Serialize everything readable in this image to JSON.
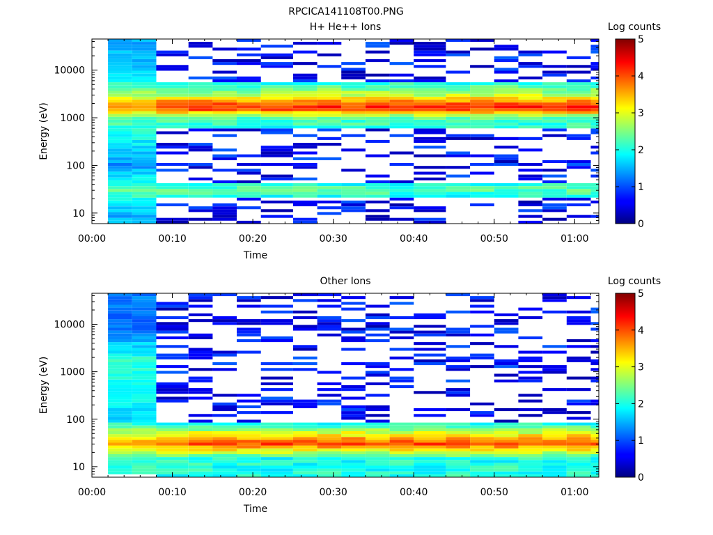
{
  "figure_title": "RPCICA141108T00.PNG",
  "chart_data": [
    {
      "type": "heatmap",
      "title": "H+ He++ Ions",
      "xlabel": "Time",
      "ylabel": "Energy (eV)",
      "colorbar_label": "Log counts",
      "y_scale": "log",
      "ylim": [
        6,
        45000
      ],
      "xlim": [
        "00:00",
        "01:03"
      ],
      "x_ticks": [
        "00:00",
        "00:10",
        "00:20",
        "00:30",
        "00:40",
        "00:50",
        "01:00"
      ],
      "y_ticks": [
        "10",
        "100",
        "1000",
        "10000"
      ],
      "colorbar_ticks": [
        "0",
        "1",
        "2",
        "3",
        "4",
        "5"
      ],
      "colorbar_range": [
        0,
        5
      ],
      "time_bins_start": [
        "00:02",
        "00:05",
        "00:08",
        "00:12",
        "00:15",
        "00:18",
        "00:21",
        "00:25",
        "00:28",
        "00:31",
        "00:34",
        "00:37",
        "00:40",
        "00:44",
        "00:47",
        "00:50",
        "00:53",
        "00:56",
        "00:59",
        "01:02"
      ],
      "spectra_profile": [
        {
          "energy_eV": 10,
          "log_counts": 1.2
        },
        {
          "energy_eV": 30,
          "log_counts": 2.3
        },
        {
          "energy_eV": 100,
          "log_counts": 1.0
        },
        {
          "energy_eV": 1000,
          "log_counts": 2.3
        },
        {
          "energy_eV": 1500,
          "log_counts": 4.0
        },
        {
          "energy_eV": 1800,
          "log_counts": 4.2
        },
        {
          "energy_eV": 3000,
          "log_counts": 2.8
        },
        {
          "energy_eV": 10000,
          "log_counts": 1.2
        }
      ]
    },
    {
      "type": "heatmap",
      "title": "Other Ions",
      "xlabel": "Time",
      "ylabel": "Energy (eV)",
      "colorbar_label": "Log counts",
      "y_scale": "log",
      "ylim": [
        6,
        45000
      ],
      "xlim": [
        "00:00",
        "01:03"
      ],
      "x_ticks": [
        "00:00",
        "00:10",
        "00:20",
        "00:30",
        "00:40",
        "00:50",
        "01:00"
      ],
      "y_ticks": [
        "10",
        "100",
        "1000",
        "10000"
      ],
      "colorbar_ticks": [
        "0",
        "1",
        "2",
        "3",
        "4",
        "5"
      ],
      "colorbar_range": [
        0,
        5
      ],
      "time_bins_start": [
        "00:02",
        "00:05",
        "00:08",
        "00:12",
        "00:15",
        "00:18",
        "00:21",
        "00:25",
        "00:28",
        "00:31",
        "00:34",
        "00:37",
        "00:40",
        "00:44",
        "00:47",
        "00:50",
        "00:53",
        "00:56",
        "00:59",
        "01:02"
      ],
      "spectra_profile": [
        {
          "energy_eV": 15,
          "log_counts": 2.0
        },
        {
          "energy_eV": 30,
          "log_counts": 4.0
        },
        {
          "energy_eV": 40,
          "log_counts": 3.5
        },
        {
          "energy_eV": 100,
          "log_counts": 1.5
        },
        {
          "energy_eV": 1700,
          "log_counts": 2.0
        },
        {
          "energy_eV": 8000,
          "log_counts": 0.8
        }
      ]
    }
  ]
}
